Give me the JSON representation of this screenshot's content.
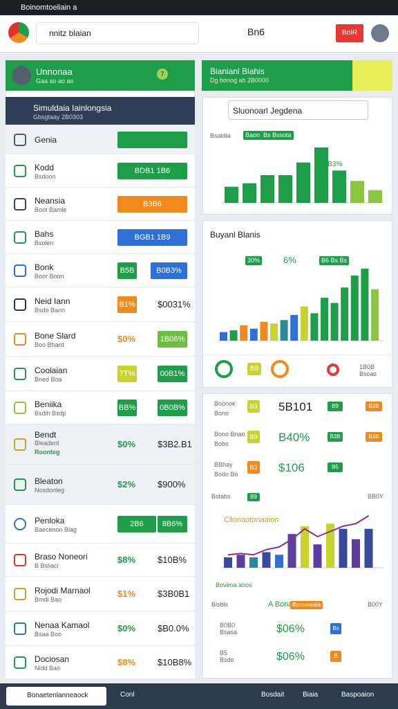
{
  "status_bar": {
    "title": "Boinomtoeliain a"
  },
  "header": {
    "search": "nnitz blaian",
    "notifications": "Bn6",
    "action": "BoIR"
  },
  "left_panel": {
    "profile": {
      "name": "Unnonaa",
      "sub": "Gaa ao ao ao",
      "badge": "7"
    },
    "section": {
      "title": "Simuldaia Iainlongsia",
      "sub": "Gbsgtaay 2B0303"
    },
    "rows": [
      {
        "label": "Genia",
        "value": {
          "color": "#1e9e48"
        }
      },
      {
        "label": "Kodd",
        "sub": "Bsdoon",
        "value": {
          "text": "BDB1 1B6",
          "color": "#1e9e48"
        }
      },
      {
        "label": "Neansia",
        "sub": "Boot Bamle",
        "value": {
          "text": "B3B6",
          "color": "#f08a1c"
        }
      },
      {
        "label": "Bahs",
        "sub": "Bsolen",
        "value": {
          "text": "BGB1 1B9",
          "color": "#2f6fd6"
        }
      },
      {
        "label": "Bonk",
        "sub": "Boor Boon",
        "tag": {
          "text": "B5B",
          "color": "#1e9e48",
          "kind": "badge"
        },
        "value": {
          "text": "B0B3%",
          "color": "#2f6fd6"
        }
      },
      {
        "label": "Neid Iann",
        "sub": "Bsdo Bann",
        "tag": {
          "text": "B1%",
          "color": "#f08a1c",
          "kind": "badge"
        },
        "value": {
          "text": "$0031%"
        }
      },
      {
        "label": "Bone Slard",
        "sub": "Boo Bhard",
        "tag": {
          "text": "$0%",
          "color": "#f08a1c",
          "kind": "text"
        },
        "value": {
          "text": "1B06%",
          "color": "#6cbf3f"
        }
      },
      {
        "label": "Coolaian",
        "sub": "Bned Boa",
        "tag": {
          "text": "7T%",
          "color": "#c9d32f",
          "kind": "badge"
        },
        "value": {
          "text": "00B1%",
          "color": "#1e9e48"
        }
      },
      {
        "label": "Beniika",
        "sub": "Bsdih Bsdp",
        "tag": {
          "text": "BB%",
          "color": "#1e9e48",
          "kind": "badge"
        },
        "value": {
          "text": "0B0B%",
          "color": "#1e9e48"
        }
      },
      {
        "label": "Bendt",
        "sub": "Bleadent",
        "sub2": "Roonteg",
        "tag": {
          "text": "$0%",
          "color": "#1e9e48",
          "kind": "text"
        },
        "value": {
          "text": "$3B2.B1"
        }
      },
      {
        "label": "Bleaton",
        "sub": "Nosdonleg",
        "tag": {
          "text": "$2%",
          "color": "#1e9e48",
          "kind": "text"
        },
        "value": {
          "text": "$900%"
        }
      },
      {
        "label": "Penloka",
        "sub": "Baecenon Blag",
        "tag": {
          "text": "2B6",
          "color": "#1e9e48",
          "kind": "badge"
        },
        "value": {
          "text": "8B6%",
          "color": "#1e9e48"
        }
      },
      {
        "label": "Braso Noneori",
        "sub": "B Bsliaci",
        "tag": {
          "text": "$8%",
          "color": "#1e9e48",
          "kind": "text"
        },
        "value": {
          "text": "$10B%"
        }
      },
      {
        "label": "Rojodi Marnaol",
        "sub": "Bmdi Bao",
        "tag": {
          "text": "$1%",
          "color": "#f08a1c",
          "kind": "text"
        },
        "value": {
          "text": "$3B0B1"
        }
      },
      {
        "label": "Nenaa Kamaol",
        "sub": "Bsaa Boo",
        "tag": {
          "text": "$0%",
          "color": "#1e9e48",
          "kind": "text"
        },
        "value": {
          "text": "$B0.0%"
        }
      },
      {
        "label": "Dociosan",
        "sub": "Nidd Bao",
        "tag": {
          "text": "$8%",
          "color": "#f08a1c",
          "kind": "text"
        },
        "value": {
          "text": "$10B8%"
        }
      }
    ]
  },
  "right_panel": {
    "banner": {
      "title": "Bianianl Blahis",
      "sub": "Dg bonog ab 2B0000"
    },
    "chart1": {
      "title": "Sluonoarl Jegdena",
      "label": "Bsaidia",
      "tags": [
        "Baon",
        "Bs Bssota"
      ],
      "annotation": "B3B3%",
      "values": [
        14,
        17,
        24,
        24,
        35,
        48,
        28,
        19,
        11
      ],
      "colors": [
        "#1e9e48",
        "#1e9e48",
        "#1e9e48",
        "#1e9e48",
        "#1e9e48",
        "#1e9e48",
        "#1e9e48",
        "#8cc63f",
        "#8cc63f"
      ]
    },
    "chart2": {
      "title": "Buyanl Blanis",
      "tags": [
        "30%",
        "6%",
        "B6 Bs Bs"
      ],
      "values": [
        5,
        6,
        9,
        7,
        11,
        10,
        12,
        15,
        20,
        16,
        25,
        22,
        31,
        38,
        42,
        30
      ],
      "colors": [
        "#2f6fd6",
        "#1e9e48",
        "#f08a1c",
        "#2f6fd6",
        "#f08a1c",
        "#c9d32f",
        "#2b8a9a",
        "#2f6fd6",
        "#c9d32f",
        "#1e9e48",
        "#1e9e48",
        "#1e9e48",
        "#1e9e48",
        "#1e9e48",
        "#1e9e48",
        "#8cc63f"
      ],
      "icons": [
        "B9",
        "1B0B Bsoas"
      ]
    },
    "stats": [
      {
        "label": "Bnonok",
        "sub": "Bono",
        "tag": {
          "text": "B3",
          "color": "#c9d32f"
        },
        "value": "5B101",
        "badges": [
          {
            "text": "B9",
            "color": "#1e9e48"
          },
          {
            "text": "B3B",
            "color": "#f08a1c"
          }
        ]
      },
      {
        "label": "Bono Bnao",
        "sub": "Bobo",
        "tag": {
          "text": "B9",
          "color": "#c9d32f"
        },
        "value": "B40%",
        "badges": [
          {
            "text": "B3B",
            "color": "#1e9e48"
          },
          {
            "text": "B3B",
            "color": "#f08a1c"
          }
        ]
      },
      {
        "label": "BBhay",
        "sub": "Bodo Bo",
        "tag": {
          "text": "B3",
          "color": "#f08a1c"
        },
        "value": "$106",
        "badges": [
          {
            "text": "B5",
            "color": "#1e9e48"
          }
        ]
      }
    ],
    "chart3": {
      "title": "Bstabs",
      "tag": "B9",
      "right": "BB0Y",
      "annotation": "Cllonaotonaaion",
      "legend": "Boveoa aoos",
      "bars": [
        8,
        10,
        8,
        12,
        10,
        26,
        32,
        18,
        34,
        30,
        22,
        30
      ],
      "colors": [
        "#3a4a9a",
        "#5a3ea0",
        "#2b8a9a",
        "#3a4a9a",
        "#2f6fd6",
        "#5a3ea0",
        "#c9d32f",
        "#5a3ea0",
        "#c9d32f",
        "#3a4a9a",
        "#5a3ea0",
        "#3a4a9a"
      ],
      "line": [
        10,
        11,
        10,
        14,
        16,
        22,
        30,
        24,
        28,
        32,
        34,
        40
      ]
    },
    "footer": {
      "title": "Bisbls",
      "middle": "A Bonaaoooe",
      "badge": "Bsssoseaia",
      "right": "B00Y",
      "rows": [
        {
          "note": "B0B0 Bsasa",
          "value": "$06%",
          "badge": {
            "text": "Bs",
            "color": "#2f6fd6"
          }
        },
        {
          "note": "B5 Bsdo",
          "value": "$06%",
          "badge": {
            "text": "B",
            "color": "#f08a1c"
          }
        }
      ]
    }
  },
  "bottom_bar": {
    "input": "Bonaetenlanneaock",
    "tab": "Conl",
    "items": [
      "Bosdait",
      "Biaia",
      "Baspoaion"
    ]
  }
}
